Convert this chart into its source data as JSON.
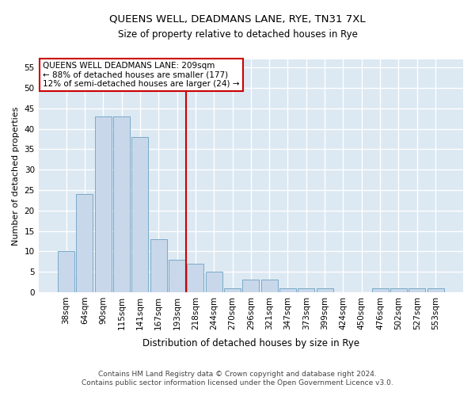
{
  "title": "QUEENS WELL, DEADMANS LANE, RYE, TN31 7XL",
  "subtitle": "Size of property relative to detached houses in Rye",
  "xlabel": "Distribution of detached houses by size in Rye",
  "ylabel": "Number of detached properties",
  "bar_color": "#c8d8ea",
  "bar_edge_color": "#7aaac8",
  "background_color": "#dce8f2",
  "categories": [
    "38sqm",
    "64sqm",
    "90sqm",
    "115sqm",
    "141sqm",
    "167sqm",
    "193sqm",
    "218sqm",
    "244sqm",
    "270sqm",
    "296sqm",
    "321sqm",
    "347sqm",
    "373sqm",
    "399sqm",
    "424sqm",
    "450sqm",
    "476sqm",
    "502sqm",
    "527sqm",
    "553sqm"
  ],
  "values": [
    10,
    24,
    43,
    43,
    38,
    13,
    8,
    7,
    5,
    1,
    3,
    3,
    1,
    1,
    1,
    0,
    0,
    1,
    1,
    1,
    1
  ],
  "vline_color": "#cc0000",
  "vline_index": 7,
  "ylim": [
    0,
    57
  ],
  "yticks": [
    0,
    5,
    10,
    15,
    20,
    25,
    30,
    35,
    40,
    45,
    50,
    55
  ],
  "annotation_title": "QUEENS WELL DEADMANS LANE: 209sqm",
  "annotation_line1": "← 88% of detached houses are smaller (177)",
  "annotation_line2": "12% of semi-detached houses are larger (24) →",
  "footer_line1": "Contains HM Land Registry data © Crown copyright and database right 2024.",
  "footer_line2": "Contains public sector information licensed under the Open Government Licence v3.0.",
  "title_fontsize": 9.5,
  "subtitle_fontsize": 8.5,
  "xlabel_fontsize": 8.5,
  "ylabel_fontsize": 8,
  "tick_fontsize": 7.5,
  "annotation_fontsize": 7.5,
  "footer_fontsize": 6.5
}
